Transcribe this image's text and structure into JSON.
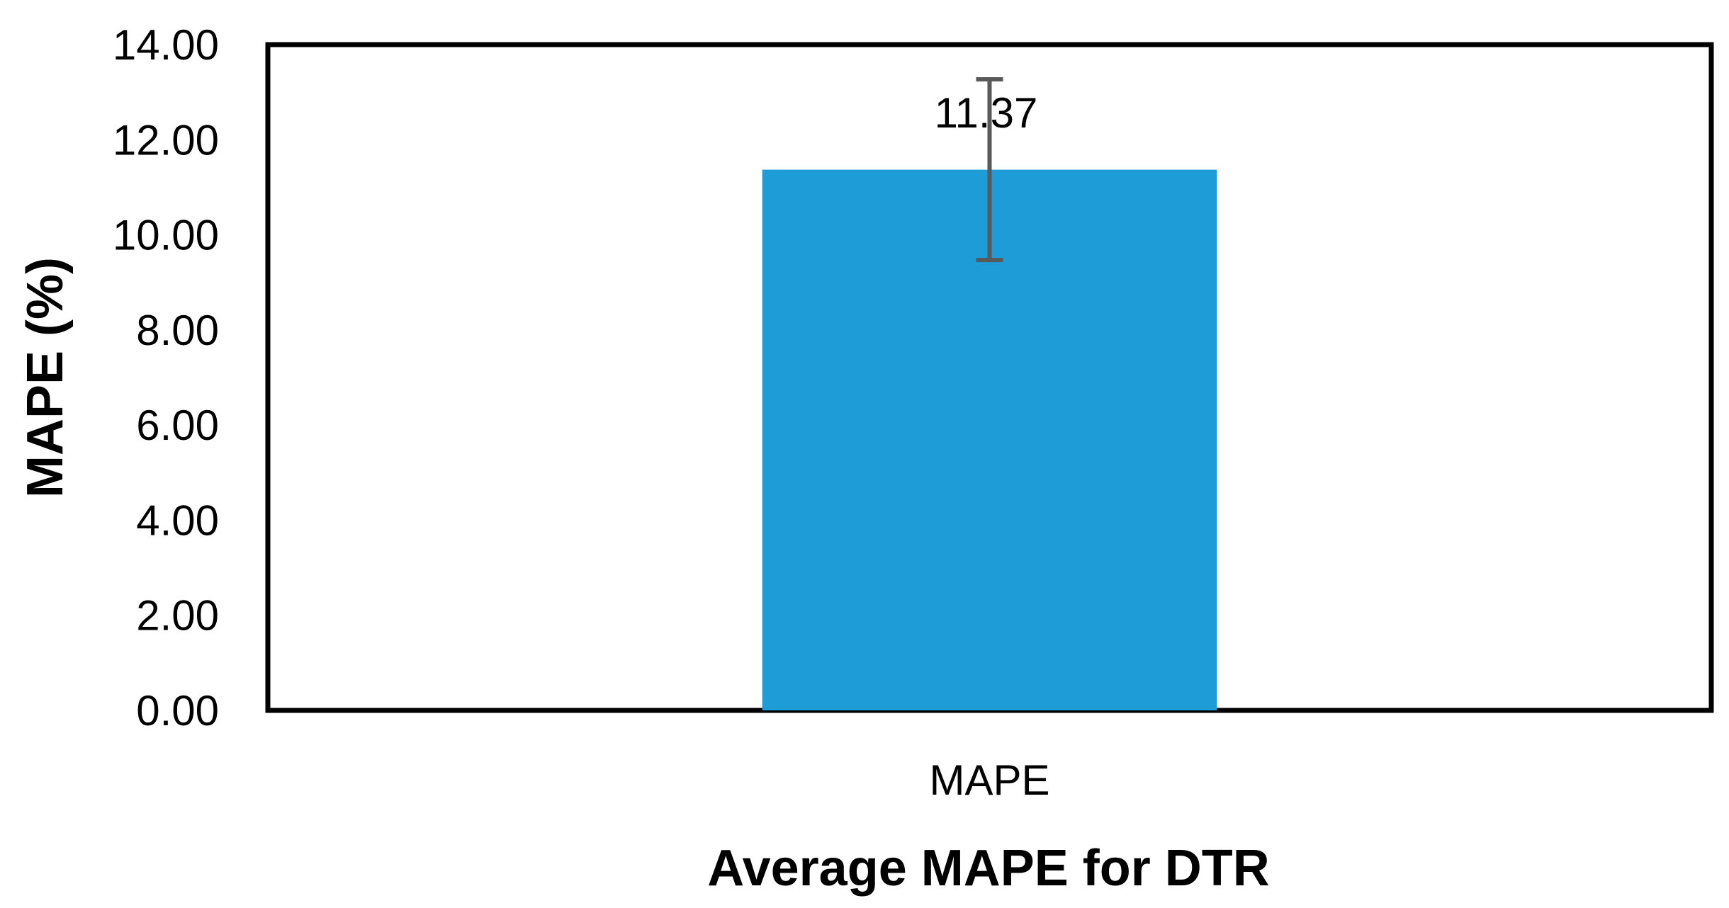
{
  "chart_data": {
    "type": "bar",
    "categories": [
      "MAPE"
    ],
    "series": [
      {
        "values": [
          11.37
        ],
        "error_plus": [
          1.9
        ],
        "error_minus": [
          1.9
        ],
        "data_labels": [
          "11.37"
        ]
      }
    ],
    "xlabel": "Average MAPE for DTR",
    "ylabel": "MAPE (%)",
    "ylim": [
      0,
      14
    ],
    "yticks": [
      0,
      2,
      4,
      6,
      8,
      10,
      12,
      14
    ],
    "ytick_labels": [
      "0.00",
      "2.00",
      "4.00",
      "6.00",
      "8.00",
      "10.00",
      "12.00",
      "14.00"
    ],
    "grid": false,
    "legend": "none",
    "colors": {
      "bar": "#1E9CD8",
      "error_bar": "#595959",
      "frame": "#000000"
    }
  }
}
